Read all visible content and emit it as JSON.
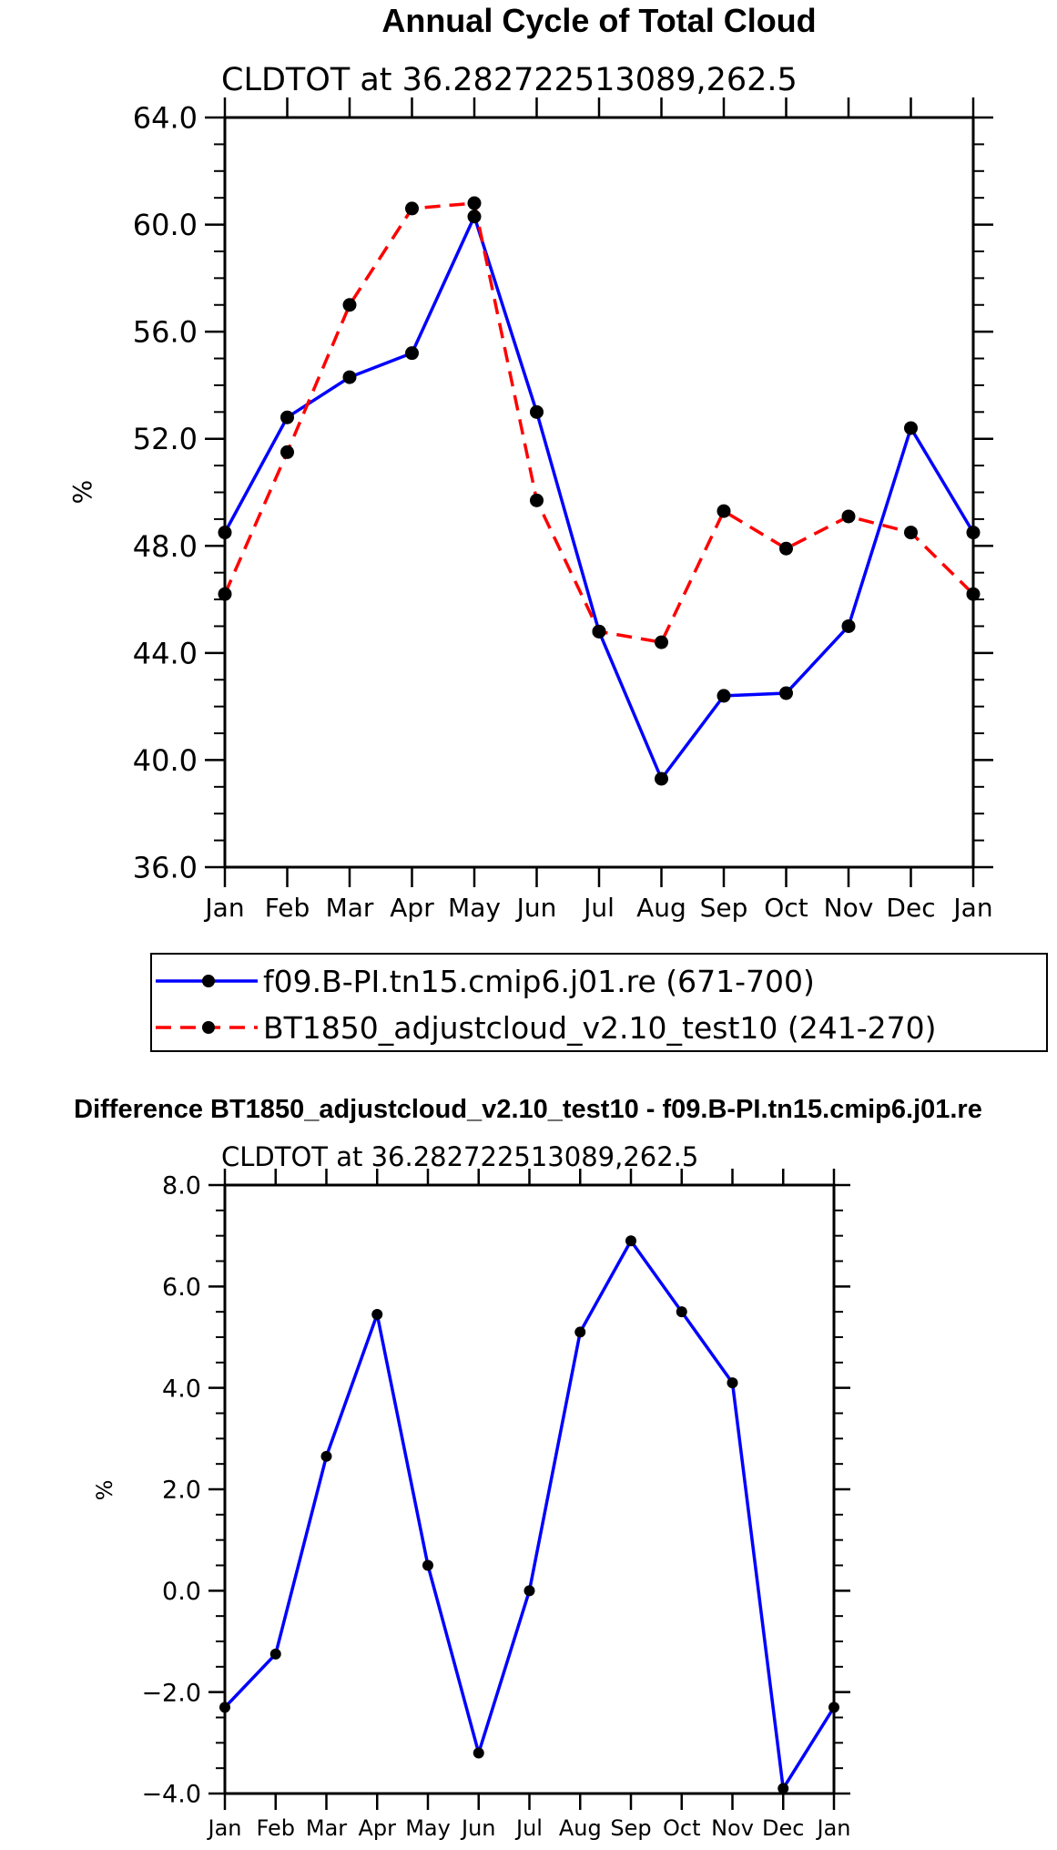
{
  "chart_data": [
    {
      "type": "line",
      "title": "Annual Cycle of Total Cloud",
      "subtitle": "CLDTOT at 36.282722513089,262.5",
      "xlabel": "",
      "ylabel": "%",
      "categories": [
        "Jan",
        "Feb",
        "Mar",
        "Apr",
        "May",
        "Jun",
        "Jul",
        "Aug",
        "Sep",
        "Oct",
        "Nov",
        "Dec",
        "Jan"
      ],
      "ylim": [
        36,
        64
      ],
      "yticks": [
        "36.0",
        "40.0",
        "44.0",
        "48.0",
        "52.0",
        "56.0",
        "60.0",
        "64.0"
      ],
      "series": [
        {
          "name": "f09.B-PI.tn15.cmip6.j01.re (671-700)",
          "color": "#0000ff",
          "dash": "solid",
          "values": [
            48.5,
            52.8,
            54.3,
            55.2,
            60.3,
            53.0,
            44.8,
            39.3,
            42.4,
            42.5,
            45.0,
            52.4,
            48.5
          ]
        },
        {
          "name": "BT1850_adjustcloud_v2.10_test10 (241-270)",
          "color": "#ff0000",
          "dash": "dashed",
          "values": [
            46.2,
            51.5,
            57.0,
            60.6,
            60.8,
            49.7,
            44.8,
            44.4,
            49.3,
            47.9,
            49.1,
            48.5,
            46.2
          ]
        }
      ],
      "legend": "below"
    },
    {
      "type": "line",
      "title": "Difference BT1850_adjustcloud_v2.10_test10 - f09.B-PI.tn15.cmip6.j01.re",
      "subtitle": "CLDTOT at 36.282722513089,262.5",
      "xlabel": "",
      "ylabel": "%",
      "categories": [
        "Jan",
        "Feb",
        "Mar",
        "Apr",
        "May",
        "Jun",
        "Jul",
        "Aug",
        "Sep",
        "Oct",
        "Nov",
        "Dec",
        "Jan"
      ],
      "ylim": [
        -4,
        8
      ],
      "yticks": [
        "−4.0",
        "−2.0",
        "0.0",
        "2.0",
        "4.0",
        "6.0",
        "8.0"
      ],
      "series": [
        {
          "name": "difference",
          "color": "#0000ff",
          "values": [
            -2.3,
            -1.25,
            2.65,
            5.45,
            0.5,
            -3.2,
            0.0,
            5.1,
            6.9,
            5.5,
            4.1,
            -3.9,
            -2.3
          ]
        }
      ]
    }
  ]
}
